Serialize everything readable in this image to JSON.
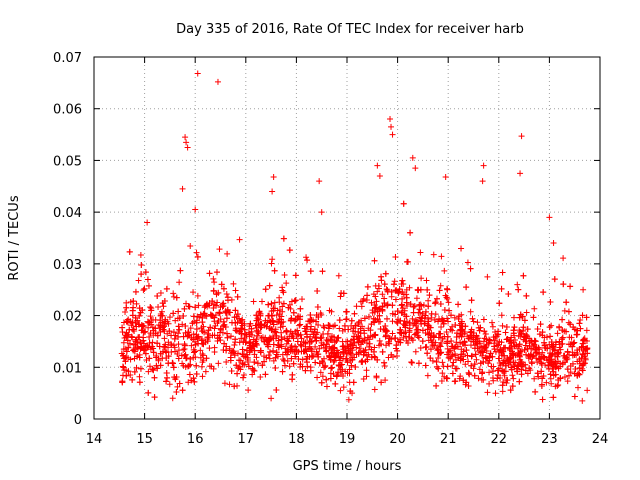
{
  "chart_data": {
    "type": "scatter",
    "title": "Day 335 of 2016, Rate Of TEC Index for receiver harb",
    "xlabel": "GPS time / hours",
    "ylabel": "ROTI / TECUs",
    "xlim": [
      14,
      24
    ],
    "ylim": [
      0,
      0.07
    ],
    "xticks": [
      "14",
      "15",
      "16",
      "17",
      "18",
      "19",
      "20",
      "21",
      "22",
      "23",
      "24"
    ],
    "yticks": [
      "0",
      "0.01",
      "0.02",
      "0.03",
      "0.04",
      "0.05",
      "0.06",
      "0.07"
    ],
    "grid": true,
    "marker": "+",
    "color": "#ff0000",
    "x_extent": [
      14.55,
      23.75
    ],
    "density_profile": [
      {
        "x": 14.6,
        "mean": 0.016,
        "spread": 0.007
      },
      {
        "x": 15.0,
        "mean": 0.016,
        "spread": 0.008
      },
      {
        "x": 15.5,
        "mean": 0.015,
        "spread": 0.008
      },
      {
        "x": 16.0,
        "mean": 0.015,
        "spread": 0.008
      },
      {
        "x": 16.5,
        "mean": 0.019,
        "spread": 0.008
      },
      {
        "x": 17.0,
        "mean": 0.014,
        "spread": 0.006
      },
      {
        "x": 17.5,
        "mean": 0.016,
        "spread": 0.007
      },
      {
        "x": 18.0,
        "mean": 0.015,
        "spread": 0.006
      },
      {
        "x": 18.5,
        "mean": 0.014,
        "spread": 0.006
      },
      {
        "x": 19.0,
        "mean": 0.013,
        "spread": 0.006
      },
      {
        "x": 19.5,
        "mean": 0.017,
        "spread": 0.008
      },
      {
        "x": 20.0,
        "mean": 0.02,
        "spread": 0.009
      },
      {
        "x": 20.5,
        "mean": 0.019,
        "spread": 0.008
      },
      {
        "x": 21.0,
        "mean": 0.015,
        "spread": 0.007
      },
      {
        "x": 21.5,
        "mean": 0.014,
        "spread": 0.006
      },
      {
        "x": 22.0,
        "mean": 0.012,
        "spread": 0.005
      },
      {
        "x": 22.5,
        "mean": 0.014,
        "spread": 0.006
      },
      {
        "x": 23.0,
        "mean": 0.012,
        "spread": 0.005
      },
      {
        "x": 23.5,
        "mean": 0.013,
        "spread": 0.006
      },
      {
        "x": 23.75,
        "mean": 0.013,
        "spread": 0.006
      }
    ],
    "notable_points": [
      {
        "x": 16.05,
        "y": 0.0668
      },
      {
        "x": 16.45,
        "y": 0.0652
      },
      {
        "x": 15.8,
        "y": 0.0545
      },
      {
        "x": 15.82,
        "y": 0.0535
      },
      {
        "x": 15.85,
        "y": 0.0525
      },
      {
        "x": 19.85,
        "y": 0.058
      },
      {
        "x": 19.87,
        "y": 0.0565
      },
      {
        "x": 19.9,
        "y": 0.055
      },
      {
        "x": 19.6,
        "y": 0.049
      },
      {
        "x": 19.65,
        "y": 0.047
      },
      {
        "x": 20.3,
        "y": 0.0505
      },
      {
        "x": 20.35,
        "y": 0.0485
      },
      {
        "x": 20.95,
        "y": 0.0468
      },
      {
        "x": 21.7,
        "y": 0.049
      },
      {
        "x": 21.68,
        "y": 0.046
      },
      {
        "x": 22.45,
        "y": 0.0547
      },
      {
        "x": 22.42,
        "y": 0.0475
      },
      {
        "x": 17.55,
        "y": 0.0468
      },
      {
        "x": 17.52,
        "y": 0.044
      },
      {
        "x": 18.45,
        "y": 0.046
      },
      {
        "x": 15.75,
        "y": 0.0445
      },
      {
        "x": 16.0,
        "y": 0.0405
      },
      {
        "x": 18.5,
        "y": 0.04
      },
      {
        "x": 23.0,
        "y": 0.039
      },
      {
        "x": 15.05,
        "y": 0.038
      },
      {
        "x": 17.5,
        "y": 0.004
      },
      {
        "x": 19.1,
        "y": 0.005
      },
      {
        "x": 23.65,
        "y": 0.0035
      }
    ]
  }
}
